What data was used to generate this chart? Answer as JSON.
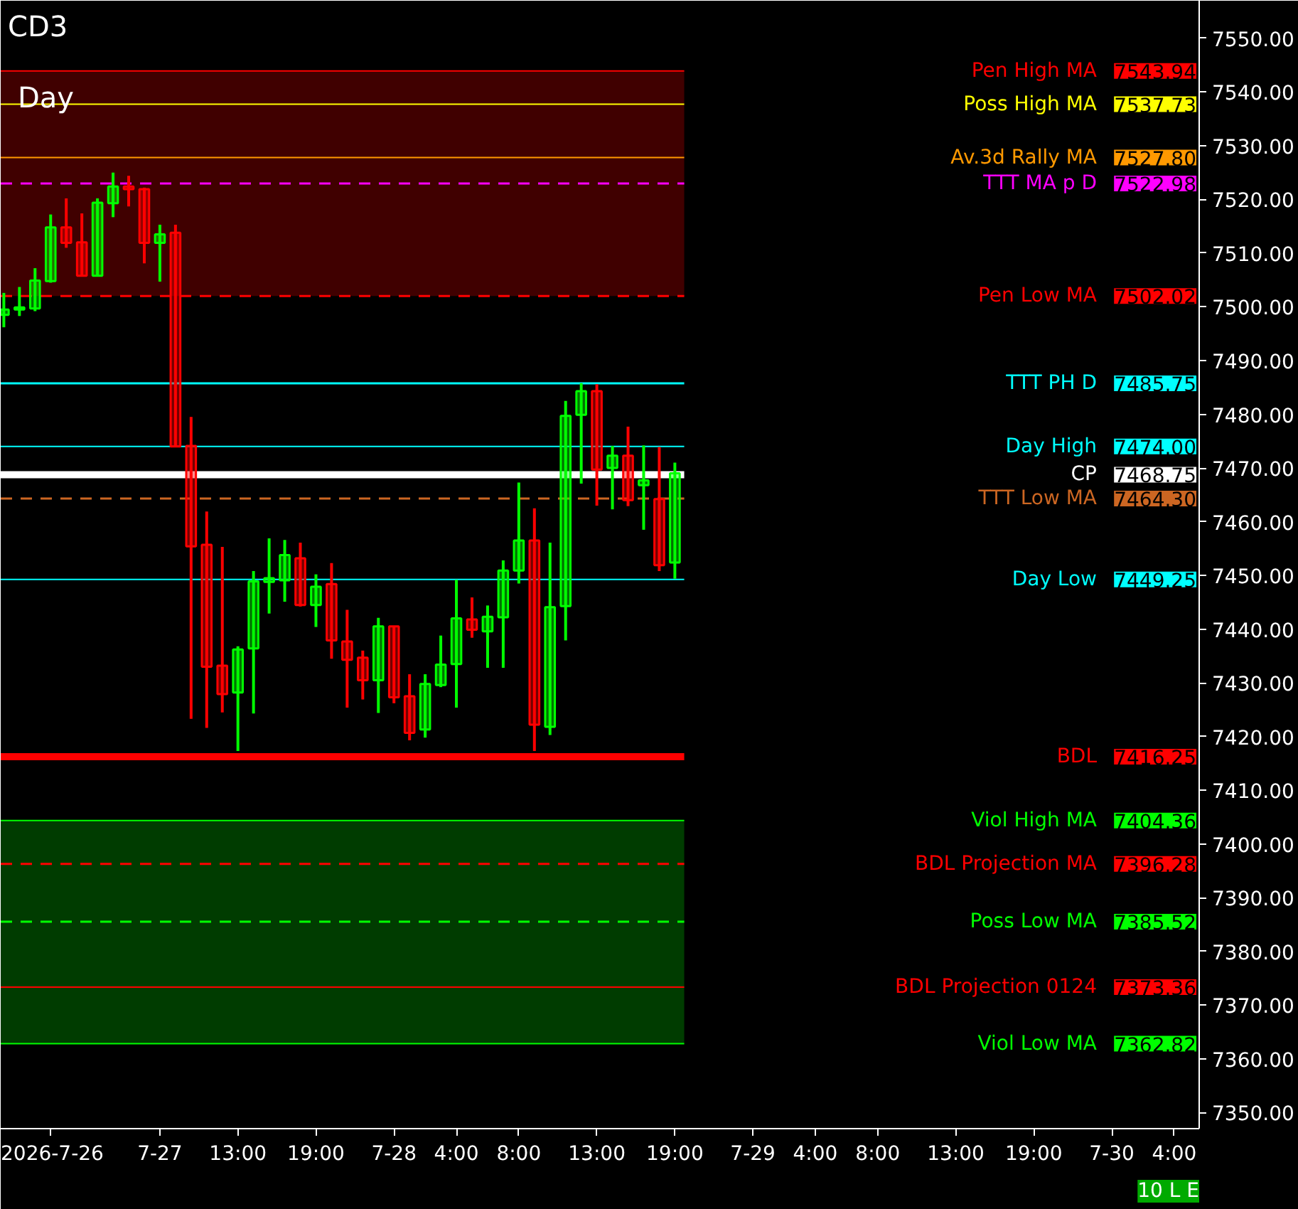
{
  "chart_data": {
    "type": "candlestick",
    "title": "CD3",
    "subtitle": "Day",
    "categories": [
      null,
      null,
      null,
      "2026-7-26",
      null,
      null,
      null,
      null,
      null,
      null,
      "7-27",
      null,
      null,
      null,
      null,
      "13:00",
      null,
      null,
      null,
      null,
      "19:00",
      null,
      null,
      null,
      null,
      "7-28",
      null,
      null,
      null,
      "4:00",
      null,
      null,
      null,
      "8:00",
      null,
      null,
      null,
      null,
      "13:00",
      null,
      null,
      null,
      null,
      "19:00",
      null,
      null,
      null,
      null,
      "7-29",
      null,
      null,
      null,
      "4:00",
      null,
      null,
      null,
      "8:00",
      null,
      null,
      null,
      null,
      "13:00",
      null,
      null,
      null,
      null,
      "19:00",
      null,
      null,
      null,
      null,
      "7-30",
      null,
      null,
      null,
      "4:00",
      null
    ],
    "ohlc": [
      [
        7498.5,
        7502.6,
        7496.2,
        7499.5
      ],
      [
        7499.5,
        7503.7,
        7498.3,
        7499.9
      ],
      [
        7499.7,
        7507.2,
        7499.2,
        7504.9
      ],
      [
        7504.8,
        7517.2,
        7504.5,
        7514.8
      ],
      [
        7514.8,
        7520.2,
        7511.0,
        7511.9
      ],
      [
        7512.0,
        7517.4,
        7505.8,
        7505.8
      ],
      [
        7505.8,
        7520.2,
        7505.8,
        7519.4
      ],
      [
        7519.3,
        7525.0,
        7516.7,
        7522.4
      ],
      [
        7522.4,
        7524.4,
        7518.7,
        7521.9
      ],
      [
        7521.9,
        7522.2,
        7508.1,
        7511.9
      ],
      [
        7511.9,
        7515.3,
        7504.7,
        7513.5
      ],
      [
        7513.8,
        7515.3,
        7474.0,
        7474.0
      ],
      [
        7474.1,
        7479.5,
        7423.3,
        7455.4
      ],
      [
        7455.7,
        7461.9,
        7421.6,
        7433.0
      ],
      [
        7433.2,
        7455.3,
        7424.5,
        7427.9
      ],
      [
        7428.2,
        7436.8,
        7417.3,
        7436.2
      ],
      [
        7436.4,
        7450.8,
        7424.3,
        7448.9
      ],
      [
        7448.8,
        7456.9,
        7442.9,
        7449.5
      ],
      [
        7449.1,
        7456.6,
        7445.1,
        7453.8
      ],
      [
        7453.2,
        7456.1,
        7444.2,
        7444.5
      ],
      [
        7444.5,
        7450.2,
        7440.4,
        7447.9
      ],
      [
        7448.4,
        7452.3,
        7434.5,
        7437.9
      ],
      [
        7437.7,
        7443.6,
        7425.4,
        7434.3
      ],
      [
        7434.7,
        7436.0,
        7426.9,
        7430.5
      ],
      [
        7430.5,
        7442.1,
        7424.4,
        7440.5
      ],
      [
        7440.5,
        7440.5,
        7426.2,
        7427.3
      ],
      [
        7427.5,
        7431.6,
        7419.3,
        7420.7
      ],
      [
        7421.3,
        7431.6,
        7419.8,
        7429.8
      ],
      [
        7429.6,
        7438.8,
        7429.2,
        7433.4
      ],
      [
        7433.5,
        7449.2,
        7425.4,
        7442.0
      ],
      [
        7441.8,
        7445.9,
        7438.4,
        7439.9
      ],
      [
        7439.6,
        7444.4,
        7432.8,
        7442.3
      ],
      [
        7442.2,
        7452.8,
        7432.8,
        7450.9
      ],
      [
        7450.9,
        7467.3,
        7448.5,
        7456.5
      ],
      [
        7456.5,
        7462.5,
        7417.3,
        7422.2
      ],
      [
        7421.8,
        7456.1,
        7420.3,
        7444.1
      ],
      [
        7444.3,
        7482.5,
        7437.9,
        7479.7
      ],
      [
        7479.9,
        7485.8,
        7467.1,
        7484.3
      ],
      [
        7484.3,
        7485.6,
        7463.0,
        7469.7
      ],
      [
        7470.0,
        7474.1,
        7462.3,
        7472.3
      ],
      [
        7472.3,
        7477.7,
        7462.9,
        7464.0
      ],
      [
        7466.8,
        7474.2,
        7458.5,
        7467.7
      ],
      [
        7464.2,
        7473.9,
        7450.8,
        7451.9
      ],
      [
        7452.4,
        7471.0,
        7449.4,
        7469.0
      ],
      null,
      null,
      null,
      null,
      null,
      null,
      null,
      null,
      null,
      null,
      null,
      null,
      null,
      null,
      null,
      null,
      null,
      null,
      null,
      null,
      null,
      null,
      null,
      null,
      null,
      null,
      null,
      null,
      null,
      null,
      null,
      null,
      null
    ],
    "colors": [
      "#00ff00",
      "#00ff00",
      "#00ff00",
      "#00ff00",
      "#ff0000",
      "#ff0000",
      "#00ff00",
      "#00ff00",
      "#ff0000",
      "#ff0000",
      "#00ff00",
      "#ff0000",
      "#ff0000",
      "#ff0000",
      "#ff0000",
      "#00ff00",
      "#00ff00",
      "#00ff00",
      "#00ff00",
      "#ff0000",
      "#00ff00",
      "#ff0000",
      "#ff0000",
      "#ff0000",
      "#00ff00",
      "#ff0000",
      "#ff0000",
      "#00ff00",
      "#00ff00",
      "#00ff00",
      "#ff0000",
      "#00ff00",
      "#00ff00",
      "#00ff00",
      "#ff0000",
      "#00ff00",
      "#00ff00",
      "#00ff00",
      "#ff0000",
      "#00ff00",
      "#ff0000",
      "#00ff00",
      "#ff0000",
      "#00ff00",
      null,
      null,
      null,
      null,
      null,
      null,
      null,
      null,
      null,
      null,
      null,
      null,
      null,
      null,
      null,
      null,
      null,
      null,
      null,
      null,
      null,
      null,
      null,
      null,
      null,
      null,
      null,
      null,
      null,
      null,
      null,
      null,
      null
    ],
    "ylim": [
      7347,
      7557
    ],
    "yticks": [
      {
        "value": 7350,
        "label": "7350.00"
      },
      {
        "value": 7360,
        "label": "7360.00"
      },
      {
        "value": 7370,
        "label": "7370.00"
      },
      {
        "value": 7380,
        "label": "7380.00"
      },
      {
        "value": 7390,
        "label": "7390.00"
      },
      {
        "value": 7400,
        "label": "7400.00"
      },
      {
        "value": 7410,
        "label": "7410.00"
      },
      {
        "value": 7420,
        "label": "7420.00"
      },
      {
        "value": 7430,
        "label": "7430.00"
      },
      {
        "value": 7440,
        "label": "7440.00"
      },
      {
        "value": 7450,
        "label": "7450.00"
      },
      {
        "value": 7460,
        "label": "7460.00"
      },
      {
        "value": 7470,
        "label": "7470.00"
      },
      {
        "value": 7480,
        "label": "7480.00"
      },
      {
        "value": 7490,
        "label": "7490.00"
      },
      {
        "value": 7500,
        "label": "7500.00"
      },
      {
        "value": 7510,
        "label": "7510.00"
      },
      {
        "value": 7520,
        "label": "7520.00"
      },
      {
        "value": 7530,
        "label": "7530.00"
      },
      {
        "value": 7540,
        "label": "7540.00"
      },
      {
        "value": 7550,
        "label": "7550.00"
      }
    ],
    "bands": [
      {
        "axis": "y",
        "from": 7502.02,
        "to": 7543.94,
        "color": "#400000"
      },
      {
        "axis": "y",
        "from": 7362.82,
        "to": 7404.36,
        "color": "#003c00"
      }
    ],
    "ref_lines": [
      {
        "axis": "y",
        "value": 7543.94,
        "label": "Pen High MA",
        "color": "#ff0000"
      },
      {
        "axis": "y",
        "value": 7537.73,
        "label": "Poss High MA",
        "color": "#ffff00"
      },
      {
        "axis": "y",
        "value": 7527.8,
        "label": "Av.3d Rally MA",
        "color": "#ff9900"
      },
      {
        "axis": "y",
        "value": 7522.98,
        "label": "TTT MA p D",
        "color": "#ff00ff",
        "line_style": "dashed"
      },
      {
        "axis": "y",
        "value": 7502.02,
        "label": "Pen Low MA",
        "color": "#ff0000",
        "line_style": "dashed"
      },
      {
        "axis": "y",
        "value": 7485.75,
        "label": "TTT PH D",
        "color": "#00ffff",
        "line_style": "solid"
      },
      {
        "axis": "y",
        "value": 7474.0,
        "label": "Day High",
        "color": "#00ffff"
      },
      {
        "axis": "y",
        "value": 7468.75,
        "label": "CP",
        "color": "#ffffff",
        "line_style": "solid"
      },
      {
        "axis": "y",
        "value": 7464.3,
        "label": "TTT Low MA",
        "color": "#cc6622",
        "line_style": "dashed"
      },
      {
        "axis": "y",
        "value": 7449.25,
        "label": "Day Low",
        "color": "#00ffff"
      },
      {
        "axis": "y",
        "value": 7416.25,
        "label": "BDL",
        "color": "#ff0000",
        "line_style": "solid"
      },
      {
        "axis": "y",
        "value": 7404.36,
        "label": "Viol High MA",
        "color": "#00ff00"
      },
      {
        "axis": "y",
        "value": 7396.28,
        "label": "BDL Projection MA",
        "color": "#ff0000",
        "line_style": "dashed"
      },
      {
        "axis": "y",
        "value": 7385.52,
        "label": "Poss Low MA",
        "color": "#00ff00",
        "line_style": "dashed"
      },
      {
        "axis": "y",
        "value": 7373.36,
        "label": "BDL Projection 0124",
        "color": "#ff0000"
      },
      {
        "axis": "y",
        "value": 7362.82,
        "label": "Viol Low MA",
        "color": "#00ff00"
      }
    ],
    "annotations": [
      "10 L E",
      "7543.94",
      "7537.73",
      "7527.80",
      "7522.98",
      "7502.02",
      "7485.75",
      "7474.00",
      "7468.75",
      "7464.30",
      "7449.25",
      "7416.25",
      "7404.36",
      "7396.28",
      "7385.52",
      "7373.36",
      "7362.82"
    ]
  }
}
